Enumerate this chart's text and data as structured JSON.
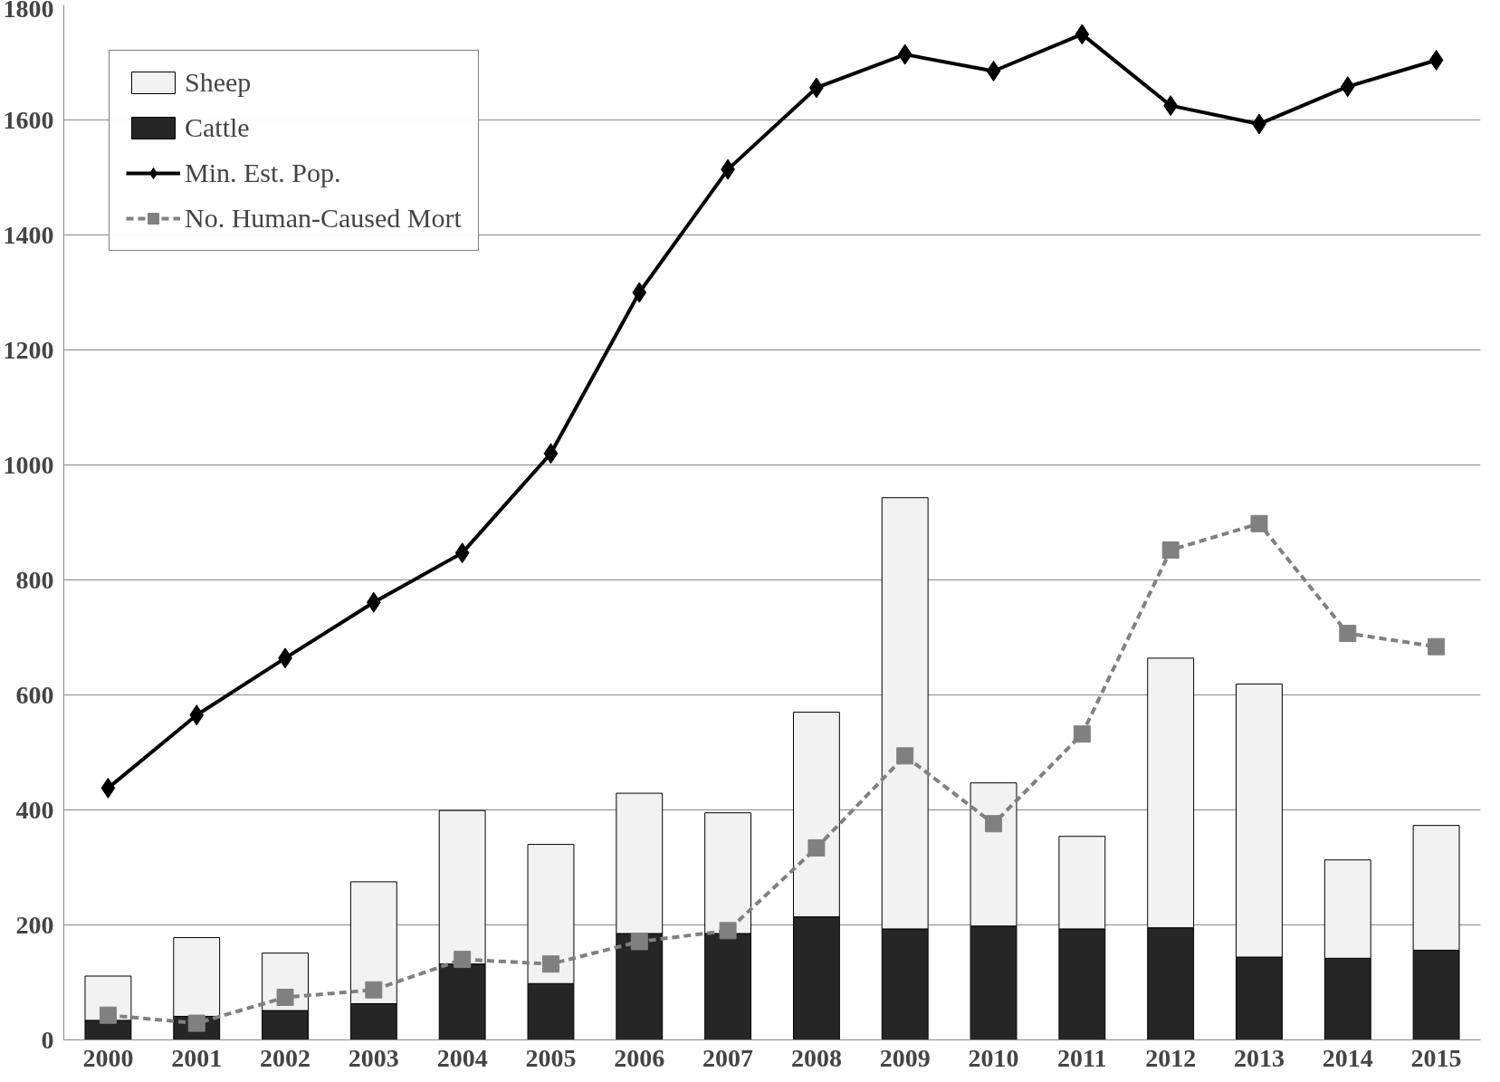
{
  "chart_data": {
    "type": "bar",
    "stacked": true,
    "categories": [
      "2000",
      "2001",
      "2002",
      "2003",
      "2004",
      "2005",
      "2006",
      "2007",
      "2008",
      "2009",
      "2010",
      "2011",
      "2012",
      "2013",
      "2014",
      "2015"
    ],
    "series": [
      {
        "name": "Cattle",
        "color": "#262626",
        "values": [
          34,
          41,
          51,
          63,
          132,
          98,
          185,
          185,
          214,
          193,
          198,
          193,
          195,
          144,
          142,
          156
        ]
      },
      {
        "name": "Sheep",
        "color": "#f2f2f2",
        "values": [
          77,
          137,
          100,
          212,
          267,
          242,
          244,
          210,
          356,
          750,
          249,
          161,
          469,
          475,
          171,
          217
        ]
      },
      {
        "name": "Min. Est. Pop.",
        "type": "line",
        "color": "#000000",
        "marker": "diamond",
        "line_style": "solid",
        "values": [
          438,
          565,
          664,
          761,
          847,
          1020,
          1300,
          1514,
          1656,
          1714,
          1685,
          1749,
          1625,
          1593,
          1658,
          1704
        ]
      },
      {
        "name": "No. Human-Caused Mort",
        "type": "line",
        "color": "#808080",
        "marker": "square",
        "line_style": "dashed",
        "values": [
          43,
          29,
          74,
          87,
          140,
          132,
          171,
          190,
          334,
          494,
          376,
          532,
          852,
          898,
          707,
          684
        ]
      }
    ],
    "ylim": [
      0,
      1800
    ],
    "yticks": [
      0,
      200,
      400,
      600,
      800,
      1000,
      1200,
      1400,
      1600,
      1800
    ],
    "grid": "y",
    "legend": "top left"
  }
}
